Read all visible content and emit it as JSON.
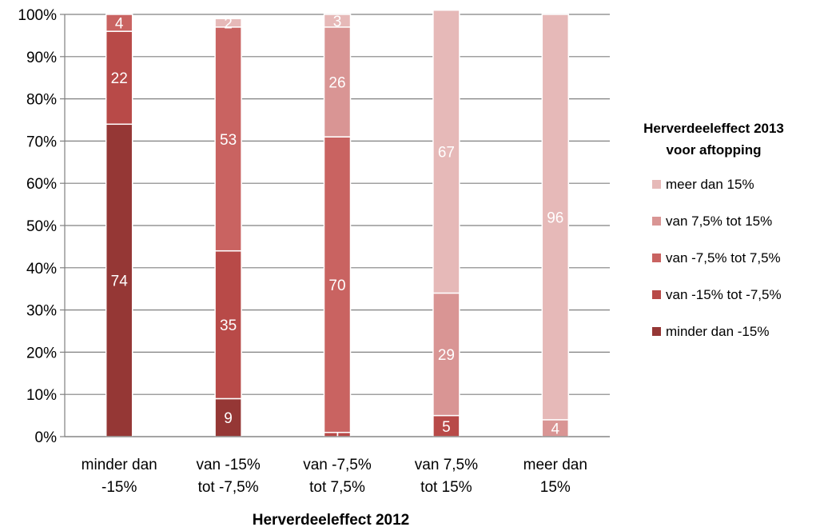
{
  "chart_data": {
    "type": "bar",
    "stacked": true,
    "percent": true,
    "categories": [
      [
        "minder dan",
        "-15%"
      ],
      [
        "van -15%",
        "tot -7,5%"
      ],
      [
        "van -7,5%",
        "tot 7,5%"
      ],
      [
        "van 7,5%",
        "tot 15%"
      ],
      [
        "meer dan",
        "15%"
      ]
    ],
    "series": [
      {
        "name": "minder dan -15%",
        "color": "#953735",
        "values": [
          74,
          9,
          0,
          0,
          0
        ]
      },
      {
        "name": "van -15% tot -7,5%",
        "color": "#B84A48",
        "values": [
          22,
          35,
          1,
          5,
          0
        ]
      },
      {
        "name": "van -7,5% tot 7,5%",
        "color": "#C96361",
        "values": [
          4,
          53,
          70,
          0,
          0
        ]
      },
      {
        "name": "van 7,5% tot 15%",
        "color": "#D99594",
        "values": [
          0,
          0,
          26,
          29,
          4
        ]
      },
      {
        "name": "meer dan 15%",
        "color": "#E6B9B8",
        "values": [
          0,
          2,
          3,
          67,
          96
        ]
      }
    ],
    "data_labels": [
      [
        "74",
        "22",
        "4",
        null,
        null
      ],
      [
        "9",
        "35",
        "53",
        null,
        "2"
      ],
      [
        null,
        "1",
        "70",
        "26",
        "3"
      ],
      [
        null,
        "5",
        null,
        "29",
        "67"
      ],
      [
        null,
        null,
        null,
        "4",
        "96"
      ]
    ],
    "xlabel": "Herverdeeleffect 2012",
    "ylabel": "",
    "ylim": [
      0,
      100
    ],
    "yticks": [
      "0%",
      "10%",
      "20%",
      "30%",
      "40%",
      "50%",
      "60%",
      "70%",
      "80%",
      "90%",
      "100%"
    ],
    "legend_title": [
      "Herverdeeleffect 2013",
      "voor aftopping"
    ],
    "legend_position": "right",
    "grid": true
  }
}
